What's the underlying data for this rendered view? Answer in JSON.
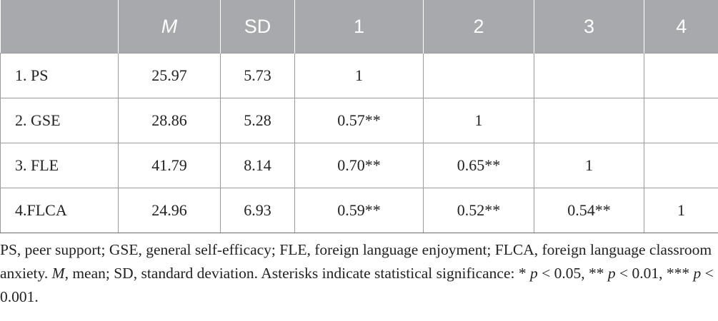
{
  "table": {
    "headers": [
      "",
      "M",
      "SD",
      "1",
      "2",
      "3",
      "4"
    ],
    "rows": [
      {
        "label": "1. PS",
        "cells": [
          "25.97",
          "5.73",
          "1",
          "",
          "",
          ""
        ]
      },
      {
        "label": "2. GSE",
        "cells": [
          "28.86",
          "5.28",
          "0.57**",
          "1",
          "",
          ""
        ]
      },
      {
        "label": "3. FLE",
        "cells": [
          "41.79",
          "8.14",
          "0.70**",
          "0.65**",
          "1",
          ""
        ]
      },
      {
        "label": "4.FLCA",
        "cells": [
          "24.96",
          "6.93",
          "0.59**",
          "0.52**",
          "0.54**",
          "1"
        ]
      }
    ]
  },
  "note": {
    "part1": "PS, peer support; GSE, general self-efficacy; FLE, foreign language enjoyment; FLCA, foreign language classroom anxiety. ",
    "m_symbol": "M",
    "part2": ", mean; SD, standard deviation. Asterisks indicate statistical significance: * ",
    "p1": "p",
    "part3": " < 0.05, ** ",
    "p2": "p",
    "part4": " < 0.01, *** ",
    "p3": "p",
    "part5": " < 0.001."
  }
}
